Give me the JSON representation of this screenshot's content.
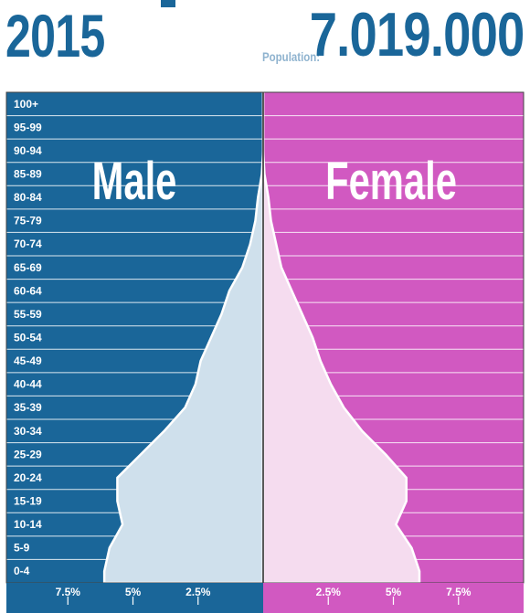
{
  "header": {
    "year": "2015",
    "population_label": "Population:",
    "population_value": "7.019.000"
  },
  "colors": {
    "male": "#1a6699",
    "female": "#d159c1",
    "male_fill": "#cfe0ec",
    "female_fill": "#f5dcef",
    "header_text": "#1a6699",
    "header_label": "#8fb3cf"
  },
  "chart_data": {
    "type": "area",
    "title": "",
    "xlabel": "",
    "ylabel": "",
    "categories": [
      "0-4",
      "5-9",
      "10-14",
      "15-19",
      "20-24",
      "25-29",
      "30-34",
      "35-39",
      "40-44",
      "45-49",
      "50-54",
      "55-59",
      "60-64",
      "65-69",
      "70-74",
      "75-79",
      "80-84",
      "85-89",
      "90-94",
      "95-99",
      "100+"
    ],
    "series": [
      {
        "name": "Male",
        "values": [
          6.1,
          5.9,
          5.4,
          5.6,
          5.6,
          4.7,
          3.8,
          3.0,
          2.6,
          2.4,
          2.0,
          1.6,
          1.3,
          0.8,
          0.5,
          0.3,
          0.2,
          0.05,
          0.0,
          0.0,
          0.0
        ]
      },
      {
        "name": "Female",
        "values": [
          6.0,
          5.7,
          5.1,
          5.5,
          5.5,
          4.7,
          3.8,
          3.1,
          2.6,
          2.2,
          1.9,
          1.5,
          1.1,
          0.7,
          0.5,
          0.3,
          0.2,
          0.05,
          0.0,
          0.0,
          0.0
        ]
      }
    ],
    "xlim": [
      -10,
      10
    ],
    "x_ticks": [
      {
        "value": -7.5,
        "label": "7.5%"
      },
      {
        "value": -5,
        "label": "5%"
      },
      {
        "value": -2.5,
        "label": "2.5%"
      },
      {
        "value": 2.5,
        "label": "2.5%"
      },
      {
        "value": 5,
        "label": "5%"
      },
      {
        "value": 7.5,
        "label": "7.5%"
      }
    ],
    "panel_labels": [
      "Male",
      "Female"
    ],
    "grid": true
  }
}
